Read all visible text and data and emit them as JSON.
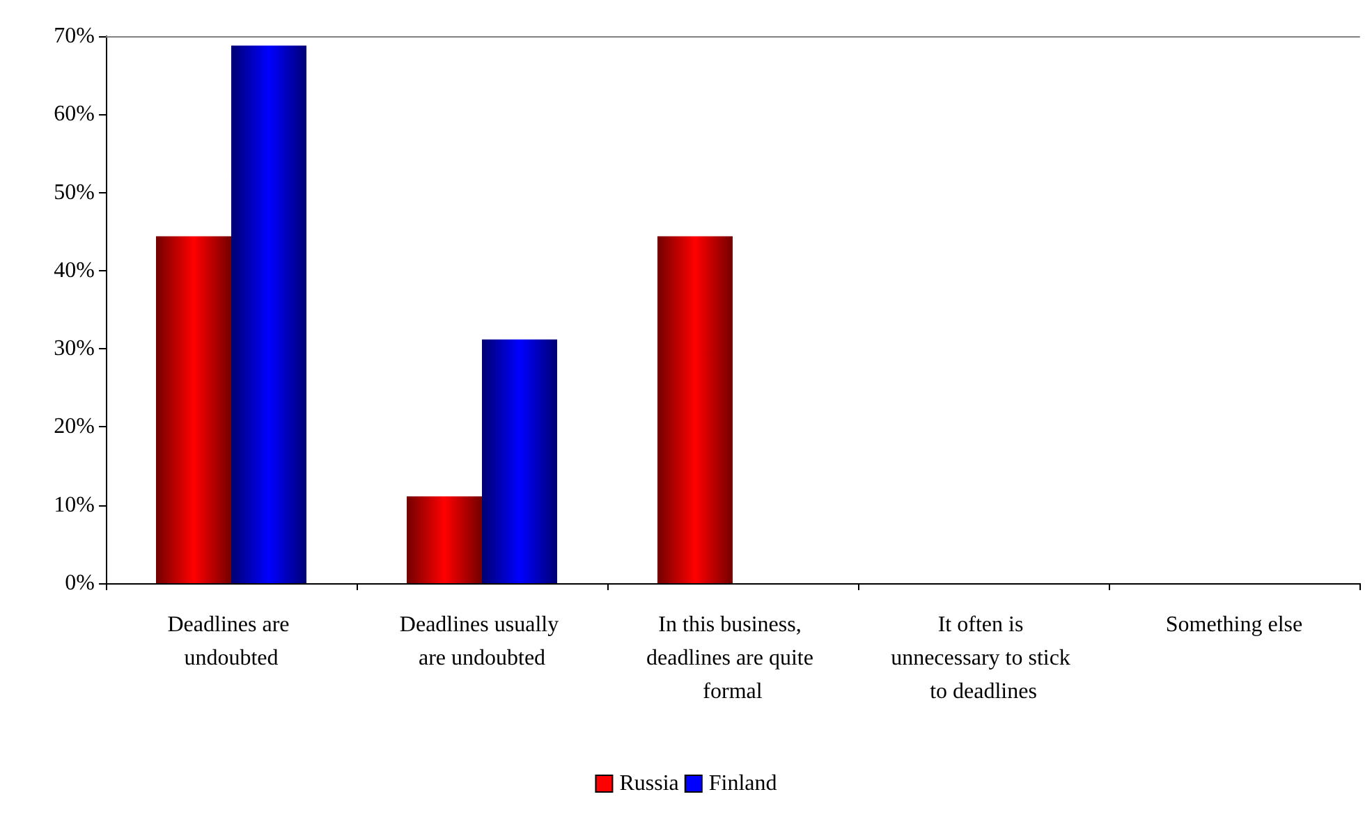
{
  "chart_data": {
    "type": "bar",
    "categories": [
      "Deadlines are undoubted",
      "Deadlines usually are undoubted",
      "In this business, deadlines are quite formal",
      "It often is unnecessary to stick to deadlines",
      "Something else"
    ],
    "series": [
      {
        "name": "Russia",
        "color": "#ff0000",
        "values": [
          44.4,
          11.1,
          44.4,
          0,
          0
        ]
      },
      {
        "name": "Finland",
        "color": "#0000ff",
        "values": [
          68.8,
          31.2,
          0,
          0,
          0
        ]
      }
    ],
    "ylim": [
      0,
      70
    ],
    "yticks": [
      {
        "value": 0,
        "label": "0%"
      },
      {
        "value": 10,
        "label": "10%"
      },
      {
        "value": 20,
        "label": "20%"
      },
      {
        "value": 30,
        "label": "30%"
      },
      {
        "value": 40,
        "label": "40%"
      },
      {
        "value": 50,
        "label": "50%"
      },
      {
        "value": 60,
        "label": "60%"
      },
      {
        "value": 70,
        "label": "70%"
      }
    ],
    "grid": false,
    "legend": "bottom"
  }
}
